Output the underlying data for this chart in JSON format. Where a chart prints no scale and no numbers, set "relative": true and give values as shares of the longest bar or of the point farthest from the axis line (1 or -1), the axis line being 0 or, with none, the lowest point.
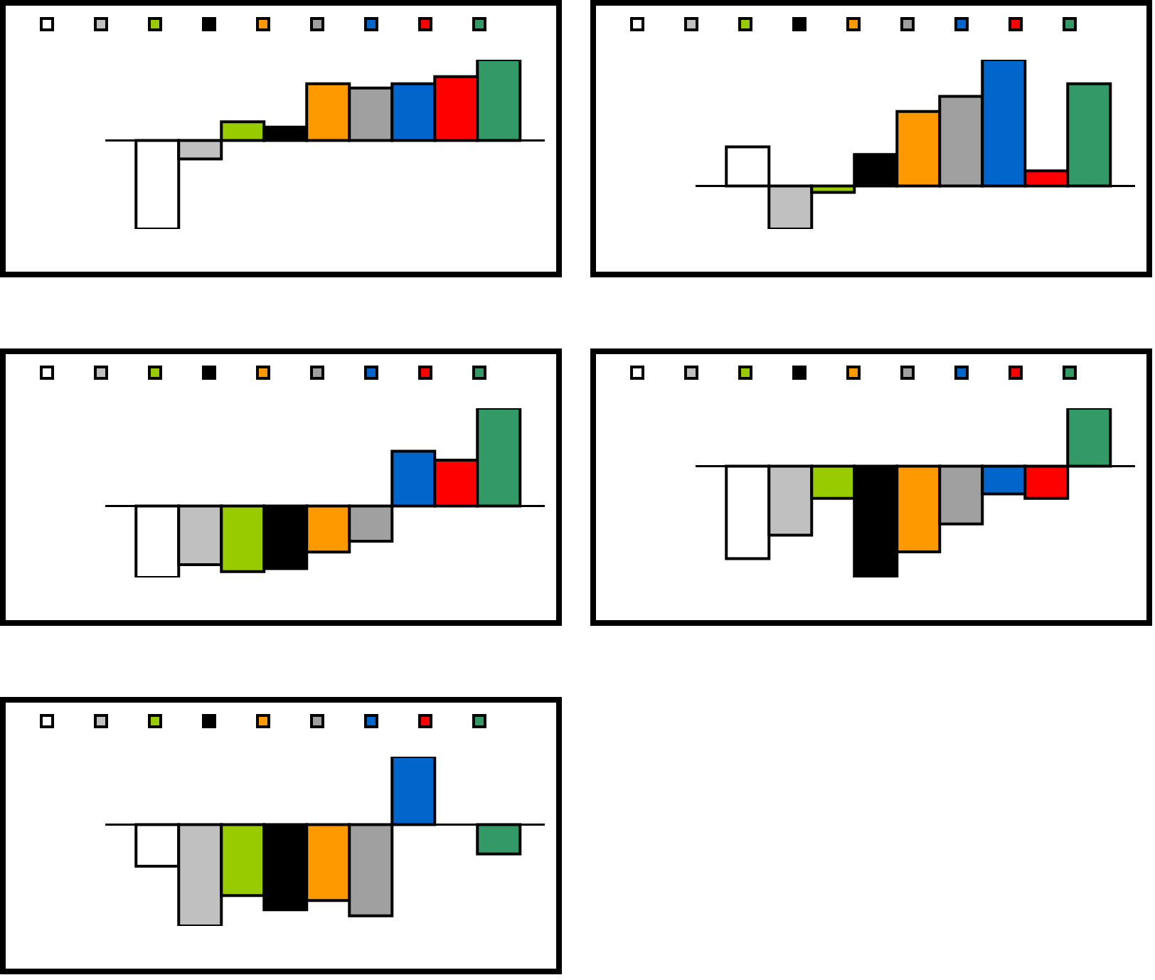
{
  "chart_data": [
    {
      "type": "bar",
      "relative": true,
      "categories": [
        null
      ],
      "series": [
        {
          "color": "#ffffff",
          "values": [
            -1
          ]
        },
        {
          "color": "#c0c0c0",
          "values": [
            -0.21
          ]
        },
        {
          "color": "#99cc00",
          "values": [
            0.21
          ]
        },
        {
          "color": "#000000",
          "values": [
            0.15
          ]
        },
        {
          "color": "#ff9900",
          "values": [
            0.64
          ]
        },
        {
          "color": "#a0a0a0",
          "values": [
            0.59
          ]
        },
        {
          "color": "#0066cc",
          "values": [
            0.64
          ]
        },
        {
          "color": "#ff0000",
          "values": [
            0.72
          ]
        },
        {
          "color": "#339966",
          "values": [
            0.91
          ]
        }
      ]
    },
    {
      "type": "bar",
      "relative": true,
      "categories": [
        null
      ],
      "series": [
        {
          "color": "#ffffff",
          "values": [
            0.31
          ]
        },
        {
          "color": "#c0c0c0",
          "values": [
            -0.34
          ]
        },
        {
          "color": "#99cc00",
          "values": [
            -0.05
          ]
        },
        {
          "color": "#000000",
          "values": [
            0.25
          ]
        },
        {
          "color": "#ff9900",
          "values": [
            0.59
          ]
        },
        {
          "color": "#a0a0a0",
          "values": [
            0.71
          ]
        },
        {
          "color": "#0066cc",
          "values": [
            1
          ]
        },
        {
          "color": "#ff0000",
          "values": [
            0.12
          ]
        },
        {
          "color": "#339966",
          "values": [
            0.81
          ]
        }
      ]
    },
    {
      "type": "bar",
      "relative": true,
      "categories": [
        null
      ],
      "series": [
        {
          "color": "#ffffff",
          "values": [
            -0.73
          ]
        },
        {
          "color": "#c0c0c0",
          "values": [
            -0.6
          ]
        },
        {
          "color": "#99cc00",
          "values": [
            -0.67
          ]
        },
        {
          "color": "#000000",
          "values": [
            -0.64
          ]
        },
        {
          "color": "#ff9900",
          "values": [
            -0.47
          ]
        },
        {
          "color": "#a0a0a0",
          "values": [
            -0.36
          ]
        },
        {
          "color": "#0066cc",
          "values": [
            0.56
          ]
        },
        {
          "color": "#ff0000",
          "values": [
            0.47
          ]
        },
        {
          "color": "#339966",
          "values": [
            1
          ]
        }
      ]
    },
    {
      "type": "bar",
      "relative": true,
      "categories": [
        null
      ],
      "series": [
        {
          "color": "#ffffff",
          "values": [
            -0.83
          ]
        },
        {
          "color": "#c0c0c0",
          "values": [
            -0.62
          ]
        },
        {
          "color": "#99cc00",
          "values": [
            -0.29
          ]
        },
        {
          "color": "#000000",
          "values": [
            -1
          ]
        },
        {
          "color": "#ff9900",
          "values": [
            -0.77
          ]
        },
        {
          "color": "#a0a0a0",
          "values": [
            -0.52
          ]
        },
        {
          "color": "#0066cc",
          "values": [
            -0.25
          ]
        },
        {
          "color": "#ff0000",
          "values": [
            -0.29
          ]
        },
        {
          "color": "#339966",
          "values": [
            0.52
          ]
        }
      ]
    },
    {
      "type": "bar",
      "relative": true,
      "categories": [
        null
      ],
      "series": [
        {
          "color": "#ffffff",
          "values": [
            -0.41
          ]
        },
        {
          "color": "#c0c0c0",
          "values": [
            -1
          ]
        },
        {
          "color": "#99cc00",
          "values": [
            -0.7
          ]
        },
        {
          "color": "#000000",
          "values": [
            -0.84
          ]
        },
        {
          "color": "#ff9900",
          "values": [
            -0.75
          ]
        },
        {
          "color": "#a0a0a0",
          "values": [
            -0.9
          ]
        },
        {
          "color": "#0066cc",
          "values": [
            0.67
          ]
        },
        {
          "color": "#ff0000",
          "values": [
            0
          ]
        },
        {
          "color": "#339966",
          "values": [
            -0.29
          ]
        }
      ]
    }
  ]
}
